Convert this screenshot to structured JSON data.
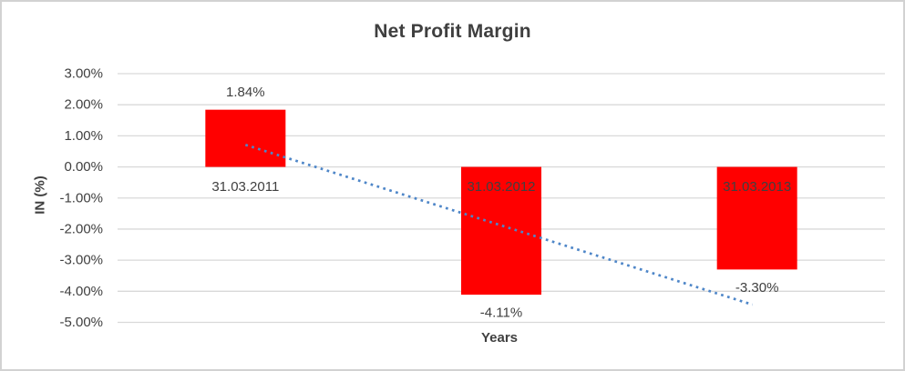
{
  "chart_data": {
    "type": "bar",
    "title": "Net Profit Margin",
    "xlabel": "Years",
    "ylabel": "IN (%)",
    "categories": [
      "31.03.2011",
      "31.03.2012",
      "31.03.2013"
    ],
    "values": [
      1.84,
      -4.11,
      -3.3
    ],
    "data_labels": [
      "1.84%",
      "-4.11%",
      "-3.30%"
    ],
    "ylim": [
      -5,
      3
    ],
    "ytick_labels": [
      "3.00%",
      "2.00%",
      "1.00%",
      "0.00%",
      "-1.00%",
      "-2.00%",
      "-3.00%",
      "-4.00%",
      "-5.00%"
    ],
    "grid": true,
    "legend": "none",
    "bar_color": "#FF0000",
    "text_color": "#404040",
    "gridline_color": "#D9D9D9",
    "trendline": {
      "type": "linear",
      "style": "dotted",
      "color": "#4E86C8",
      "points": [
        0.71,
        -1.86,
        -4.43
      ]
    }
  }
}
